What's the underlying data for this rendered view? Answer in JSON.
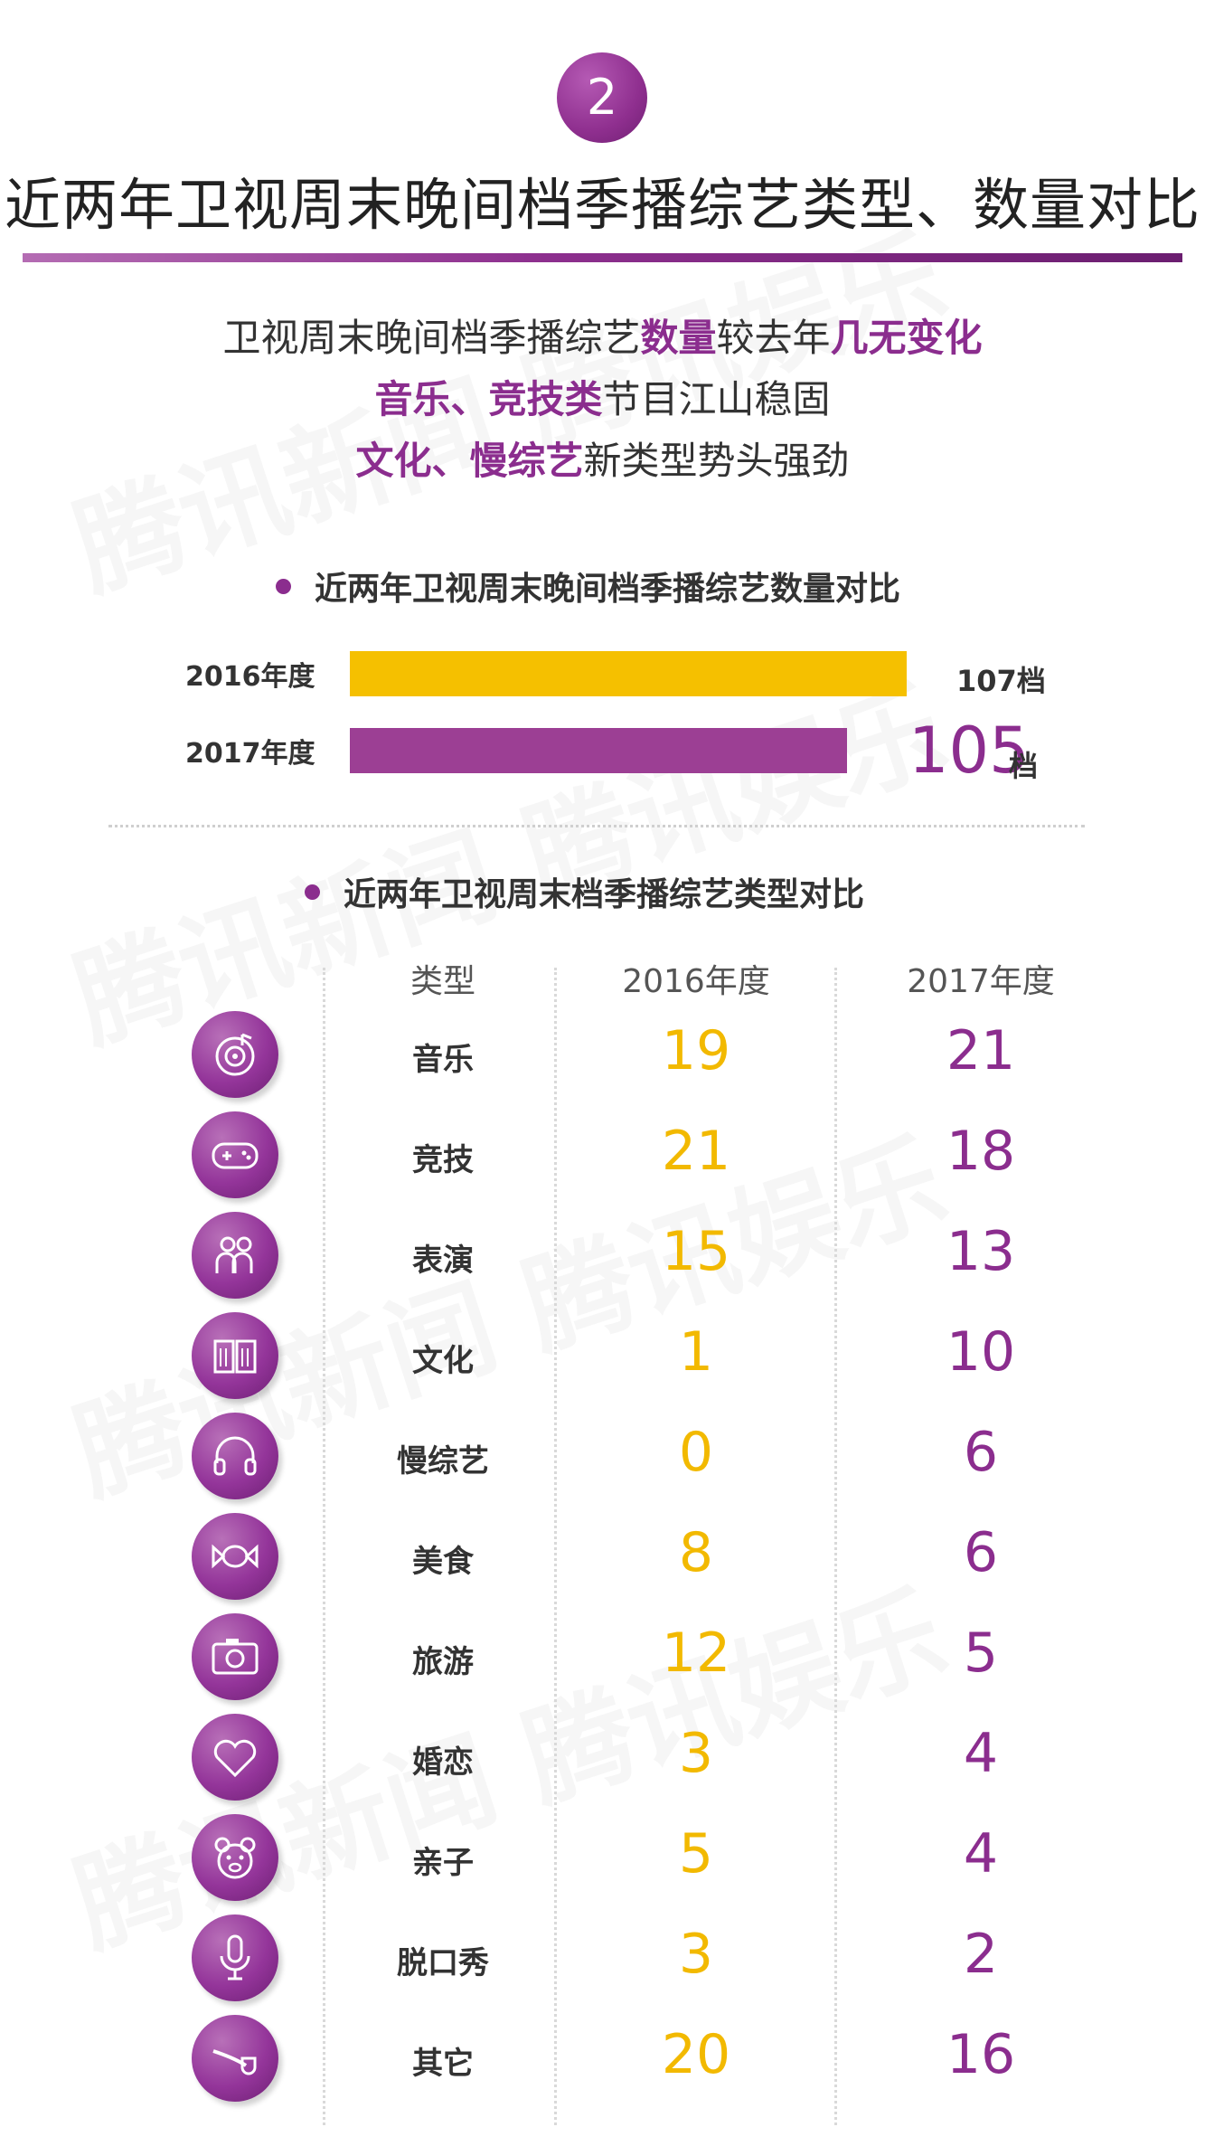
{
  "badge": "2",
  "title": "近两年卫视周末晚间档季播综艺类型、数量对比",
  "subtitle": {
    "line1": {
      "a": "卫视周末晚间档季播综艺",
      "b": "数量",
      "c": "较去年",
      "d": "几无变化"
    },
    "line2": {
      "a": "音乐、竞技类",
      "b": "节目江山稳固"
    },
    "line3": {
      "a": "文化、慢综艺",
      "b": "新类型势头强劲"
    }
  },
  "watermark": "腾讯新闻  腾讯娱乐",
  "colors": {
    "purple": "#8b2d8e",
    "yellow": "#f5c000",
    "bar2017": "#9c3f94"
  },
  "chart_data": [
    {
      "type": "bar",
      "title": "近两年卫视周末晚间档季播综艺数量对比",
      "categories": [
        "2016年度",
        "2017年度"
      ],
      "values": [
        107,
        105
      ],
      "unit": "档",
      "value_labels": [
        "107",
        "105"
      ]
    },
    {
      "type": "table",
      "title": "近两年卫视周末档季播综艺类型对比",
      "columns": [
        "类型",
        "2016年度",
        "2017年度"
      ],
      "rows": [
        {
          "type": "音乐",
          "icon": "music-disc-icon",
          "y2016": 19,
          "y2017": 21
        },
        {
          "type": "竞技",
          "icon": "gamepad-icon",
          "y2016": 21,
          "y2017": 18
        },
        {
          "type": "表演",
          "icon": "performers-icon",
          "y2016": 15,
          "y2017": 13
        },
        {
          "type": "文化",
          "icon": "book-icon",
          "y2016": 1,
          "y2017": 10
        },
        {
          "type": "慢综艺",
          "icon": "headphones-icon",
          "y2016": 0,
          "y2017": 6
        },
        {
          "type": "美食",
          "icon": "candy-icon",
          "y2016": 8,
          "y2017": 6
        },
        {
          "type": "旅游",
          "icon": "camera-icon",
          "y2016": 12,
          "y2017": 5
        },
        {
          "type": "婚恋",
          "icon": "heart-icon",
          "y2016": 3,
          "y2017": 4
        },
        {
          "type": "亲子",
          "icon": "bear-icon",
          "y2016": 5,
          "y2017": 4
        },
        {
          "type": "脱口秀",
          "icon": "microphone-icon",
          "y2016": 3,
          "y2017": 2
        },
        {
          "type": "其它",
          "icon": "pipe-icon",
          "y2016": 20,
          "y2017": 16
        }
      ]
    }
  ]
}
